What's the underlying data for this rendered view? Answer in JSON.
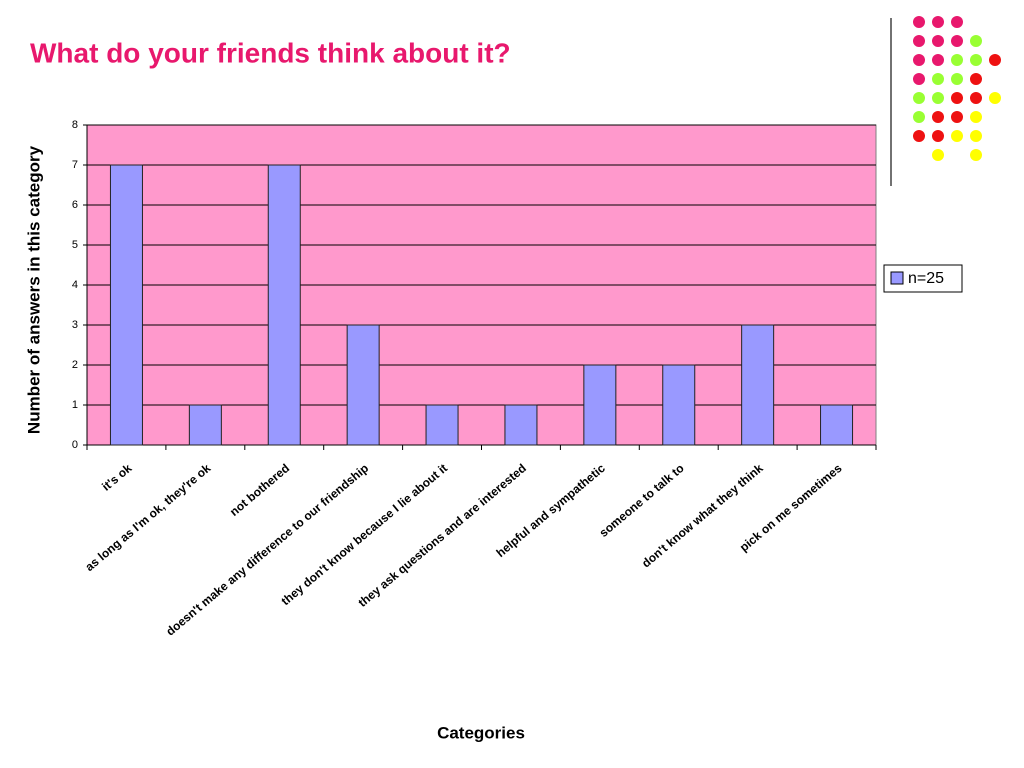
{
  "chart_data": {
    "type": "bar",
    "title": "What do your friends think about it?",
    "x_label": "Categories",
    "y_label": "Number of answers in this category",
    "categories": [
      "it's ok",
      "as long as I'm ok, they're ok",
      "not bothered",
      "doesn't make any difference to our friendship",
      "they don't know because I lie about it",
      "they ask questions and are interested",
      "helpful and sympathetic",
      "someone to talk to",
      "don't know what they think",
      "pick on me sometimes"
    ],
    "series": [
      {
        "name": "n=25",
        "color": "#9999ff",
        "values": [
          7,
          1,
          7,
          3,
          1,
          1,
          2,
          2,
          3,
          1
        ]
      }
    ],
    "ylim": [
      0,
      8
    ],
    "yticks": [
      0,
      1,
      2,
      3,
      4,
      5,
      6,
      7,
      8
    ],
    "grid": true,
    "legend": "right",
    "plot_background": "#ff99cc"
  }
}
